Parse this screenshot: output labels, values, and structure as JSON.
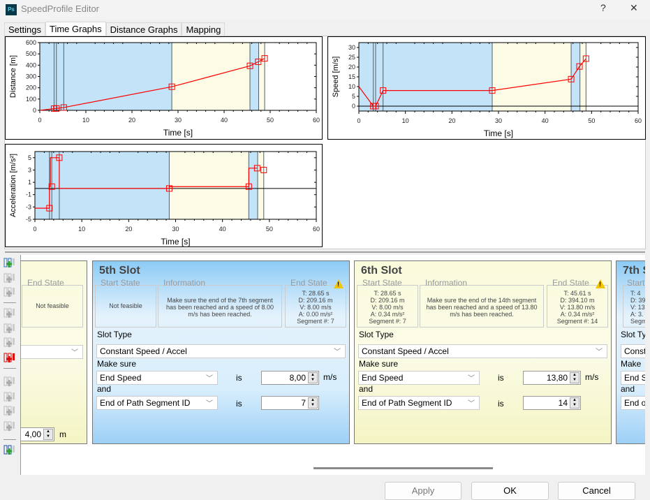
{
  "window": {
    "title": "SpeedProfile Editor",
    "app_icon": "Ps",
    "help": "?",
    "close": "✕"
  },
  "tabs": [
    "Settings",
    "Time Graphs",
    "Distance Graphs",
    "Mapping"
  ],
  "active_tab": "Time Graphs",
  "colors": {
    "blue_band": "#c3e3f8",
    "yellow_band": "#fcfbe6",
    "series": "#ff0000",
    "band_line": "#50606a"
  },
  "chart_data": [
    {
      "type": "line",
      "id": "distance",
      "xlabel": "Time [s]",
      "ylabel": "Distance [m]",
      "xlim": [
        0,
        60
      ],
      "ylim": [
        0,
        600
      ],
      "xticks": [
        0,
        10,
        20,
        30,
        40,
        50,
        60
      ],
      "yticks": [
        0,
        100,
        200,
        300,
        400,
        500,
        600
      ],
      "bands": [
        {
          "from": 0,
          "to": 28.65,
          "color": "blue"
        },
        {
          "from": 28.65,
          "to": 45.61,
          "color": "yellow"
        },
        {
          "from": 45.61,
          "to": 47.5,
          "color": "blue"
        },
        {
          "from": 47.5,
          "to": 48.8,
          "color": "yellow"
        }
      ],
      "band_lines": [
        3.1,
        3.6,
        5.2,
        28.65,
        45.61,
        47.5,
        48.8
      ],
      "line": [
        [
          0,
          0
        ],
        [
          3.1,
          15
        ],
        [
          3.6,
          17
        ],
        [
          5.2,
          25
        ],
        [
          28.65,
          209.16
        ],
        [
          37,
          300
        ],
        [
          45.61,
          394.1
        ],
        [
          47.4,
          430
        ],
        [
          48.8,
          460
        ]
      ],
      "markers": [
        [
          3.1,
          15
        ],
        [
          3.6,
          17
        ],
        [
          5.2,
          25
        ],
        [
          28.65,
          209.16
        ],
        [
          45.61,
          394.1
        ],
        [
          47.4,
          430
        ],
        [
          48.8,
          460
        ]
      ]
    },
    {
      "type": "line",
      "id": "speed",
      "xlabel": "Time [s]",
      "ylabel": "Speed [m/s]",
      "xlim": [
        0,
        60
      ],
      "ylim": [
        -2.5,
        32.5
      ],
      "xticks": [
        0,
        10,
        20,
        30,
        40,
        50,
        60
      ],
      "yticks": [
        0,
        5,
        10,
        15,
        20,
        25,
        30
      ],
      "bands": [
        {
          "from": 0,
          "to": 28.65,
          "color": "blue"
        },
        {
          "from": 28.65,
          "to": 45.61,
          "color": "yellow"
        },
        {
          "from": 45.61,
          "to": 47.5,
          "color": "blue"
        },
        {
          "from": 47.5,
          "to": 48.8,
          "color": "yellow"
        }
      ],
      "band_lines": [
        3.1,
        3.6,
        5.2,
        28.65,
        45.61,
        47.5,
        48.8
      ],
      "line": [
        [
          0,
          10
        ],
        [
          3.1,
          0
        ],
        [
          3.6,
          0
        ],
        [
          5.2,
          8
        ],
        [
          28.65,
          8
        ],
        [
          45.61,
          13.8
        ],
        [
          47.4,
          20.3
        ],
        [
          48.8,
          24.3
        ]
      ],
      "markers": [
        [
          3.1,
          0
        ],
        [
          3.6,
          0
        ],
        [
          5.2,
          8
        ],
        [
          28.65,
          8
        ],
        [
          45.61,
          13.8
        ],
        [
          47.4,
          20.3
        ],
        [
          48.8,
          24.3
        ]
      ]
    },
    {
      "type": "line",
      "id": "acceleration",
      "xlabel": "Time [s]",
      "ylabel": "Acceleration [m/s²]",
      "xlim": [
        0,
        60
      ],
      "ylim": [
        -5,
        6
      ],
      "xticks": [
        0,
        10,
        20,
        30,
        40,
        50,
        60
      ],
      "yticks": [
        -5,
        -3,
        -1,
        1,
        3,
        5
      ],
      "bands": [
        {
          "from": 0,
          "to": 28.65,
          "color": "blue"
        },
        {
          "from": 28.65,
          "to": 45.61,
          "color": "yellow"
        },
        {
          "from": 45.61,
          "to": 47.5,
          "color": "blue"
        },
        {
          "from": 47.5,
          "to": 48.8,
          "color": "yellow"
        }
      ],
      "band_lines": [
        3.1,
        3.6,
        5.2,
        28.65,
        45.61,
        47.5,
        48.8
      ],
      "line": [
        [
          0,
          -3.2
        ],
        [
          3.1,
          -3.2
        ],
        [
          3.1,
          0.3
        ],
        [
          3.3,
          0.3
        ],
        [
          3.3,
          5
        ],
        [
          5.2,
          5
        ],
        [
          5.2,
          0
        ],
        [
          28.65,
          0
        ],
        [
          28.65,
          0.3
        ],
        [
          45.61,
          0.3
        ],
        [
          45.61,
          3.3
        ],
        [
          47.4,
          3.3
        ]
      ],
      "markers": [
        [
          3.1,
          -3.2
        ],
        [
          3.6,
          0.3
        ],
        [
          5.2,
          5
        ],
        [
          28.65,
          0
        ],
        [
          45.61,
          0.3
        ],
        [
          47.4,
          3.3
        ],
        [
          48.8,
          3.0
        ]
      ]
    }
  ],
  "toolbar": [
    "insert-slot-icon",
    "add-slot-before-icon",
    "add-slot-after-icon",
    "delete-slot-icon",
    "delete-slot-left-icon",
    "delete-slot-right-icon",
    "delete-all-slots-icon",
    "move-first-icon",
    "move-left-icon",
    "move-right-icon",
    "move-last-icon",
    "export-icon"
  ],
  "slot4": {
    "end_state_label": "End State",
    "end_state": "Not feasible",
    "distance_value": "4,00",
    "distance_unit": "m"
  },
  "slot5": {
    "title": "5th Slot",
    "start_label": "Start State",
    "start": "Not feasible",
    "info_label": "Information",
    "info": "Make sure the end of the 7th segment has been reached and a speed of 8.00 m/s has been reached.",
    "end_label": "End State",
    "end": [
      "T: 28.65 s",
      "D: 209.16 m",
      "V: 8.00 m/s",
      "A: 0.00 m/s²",
      "Segment #: 7"
    ],
    "slot_type_label": "Slot Type",
    "slot_type": "Constant Speed / Accel",
    "make_sure": "Make sure",
    "cond1": "End Speed",
    "is1": "is",
    "val1": "8,00",
    "unit1": "m/s",
    "and": "and",
    "cond2": "End of Path Segment ID",
    "is2": "is",
    "val2": "7"
  },
  "slot6": {
    "title": "6th Slot",
    "start_label": "Start State",
    "start": [
      "T: 28.65 s",
      "D: 209.16 m",
      "V: 8.00 m/s",
      "A: 0.34 m/s²",
      "Segment #: 7"
    ],
    "info_label": "Information",
    "info": "Make sure the end of the 14th segment has been reached and a speed of 13.80 m/s has been reached.",
    "end_label": "End State",
    "end": [
      "T: 45.61 s",
      "D: 394.10 m",
      "V: 13.80 m/s",
      "A: 0.34 m/s²",
      "Segment #: 14"
    ],
    "slot_type_label": "Slot Type",
    "slot_type": "Constant Speed / Accel",
    "make_sure": "Make sure",
    "cond1": "End Speed",
    "is1": "is",
    "val1": "13,80",
    "unit1": "m/s",
    "and": "and",
    "cond2": "End of Path Segment ID",
    "is2": "is",
    "val2": "14"
  },
  "slot7": {
    "title": "7th S",
    "start_label": "Start S",
    "start": [
      "T: 4",
      "D: 39",
      "V: 13",
      "A: 3.",
      "Segm"
    ],
    "slot_type_label": "Slot Ty",
    "slot_type": "Const",
    "make_sure": "Make",
    "cond1": "End S",
    "and": "and",
    "cond2": "End o"
  },
  "buttons": {
    "apply": "Apply",
    "ok": "OK",
    "cancel": "Cancel"
  }
}
